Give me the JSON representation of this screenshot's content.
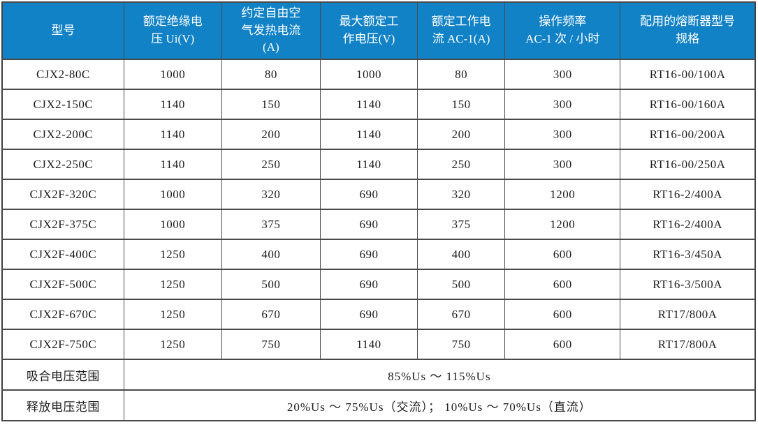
{
  "table": {
    "headers": [
      "型号",
      "额定绝缘电\n压 Ui(V)",
      "约定自由空\n气发热电流\n(A)",
      "最大额定工\n作电压(V)",
      "额定工作电\n流 AC-1(A)",
      "操作频率\nAC-1 次 / 小时",
      "配用的熔断器型号\n规格"
    ],
    "rows": [
      [
        "CJX2-80C",
        "1000",
        "80",
        "1000",
        "80",
        "300",
        "RT16-00/100A"
      ],
      [
        "CJX2-150C",
        "1140",
        "150",
        "1140",
        "150",
        "300",
        "RT16-00/160A"
      ],
      [
        "CJX2-200C",
        "1140",
        "200",
        "1140",
        "200",
        "300",
        "RT16-00/200A"
      ],
      [
        "CJX2-250C",
        "1140",
        "250",
        "1140",
        "250",
        "300",
        "RT16-00/250A"
      ],
      [
        "CJX2F-320C",
        "1000",
        "320",
        "690",
        "320",
        "1200",
        "RT16-2/400A"
      ],
      [
        "CJX2F-375C",
        "1000",
        "375",
        "690",
        "375",
        "1200",
        "RT16-2/400A"
      ],
      [
        "CJX2F-400C",
        "1250",
        "400",
        "690",
        "400",
        "600",
        "RT16-3/450A"
      ],
      [
        "CJX2F-500C",
        "1250",
        "500",
        "690",
        "500",
        "600",
        "RT16-3/500A"
      ],
      [
        "CJX2F-670C",
        "1250",
        "670",
        "690",
        "670",
        "600",
        "RT17/800A"
      ],
      [
        "CJX2F-750C",
        "1250",
        "750",
        "1140",
        "750",
        "600",
        "RT17/800A"
      ]
    ],
    "footer_rows": [
      {
        "label": "吸合电压范围",
        "value": "85%Us ～ 115%Us"
      },
      {
        "label": "释放电压范围",
        "value": "20%Us ～ 75%Us（交流）； 10%Us ～ 70%Us（直流）"
      }
    ]
  },
  "colors": {
    "header_bg": "#1182c5",
    "header_text": "#ffffff",
    "grid_line": "#4a4a4a",
    "body_text": "#1c1c1c"
  }
}
